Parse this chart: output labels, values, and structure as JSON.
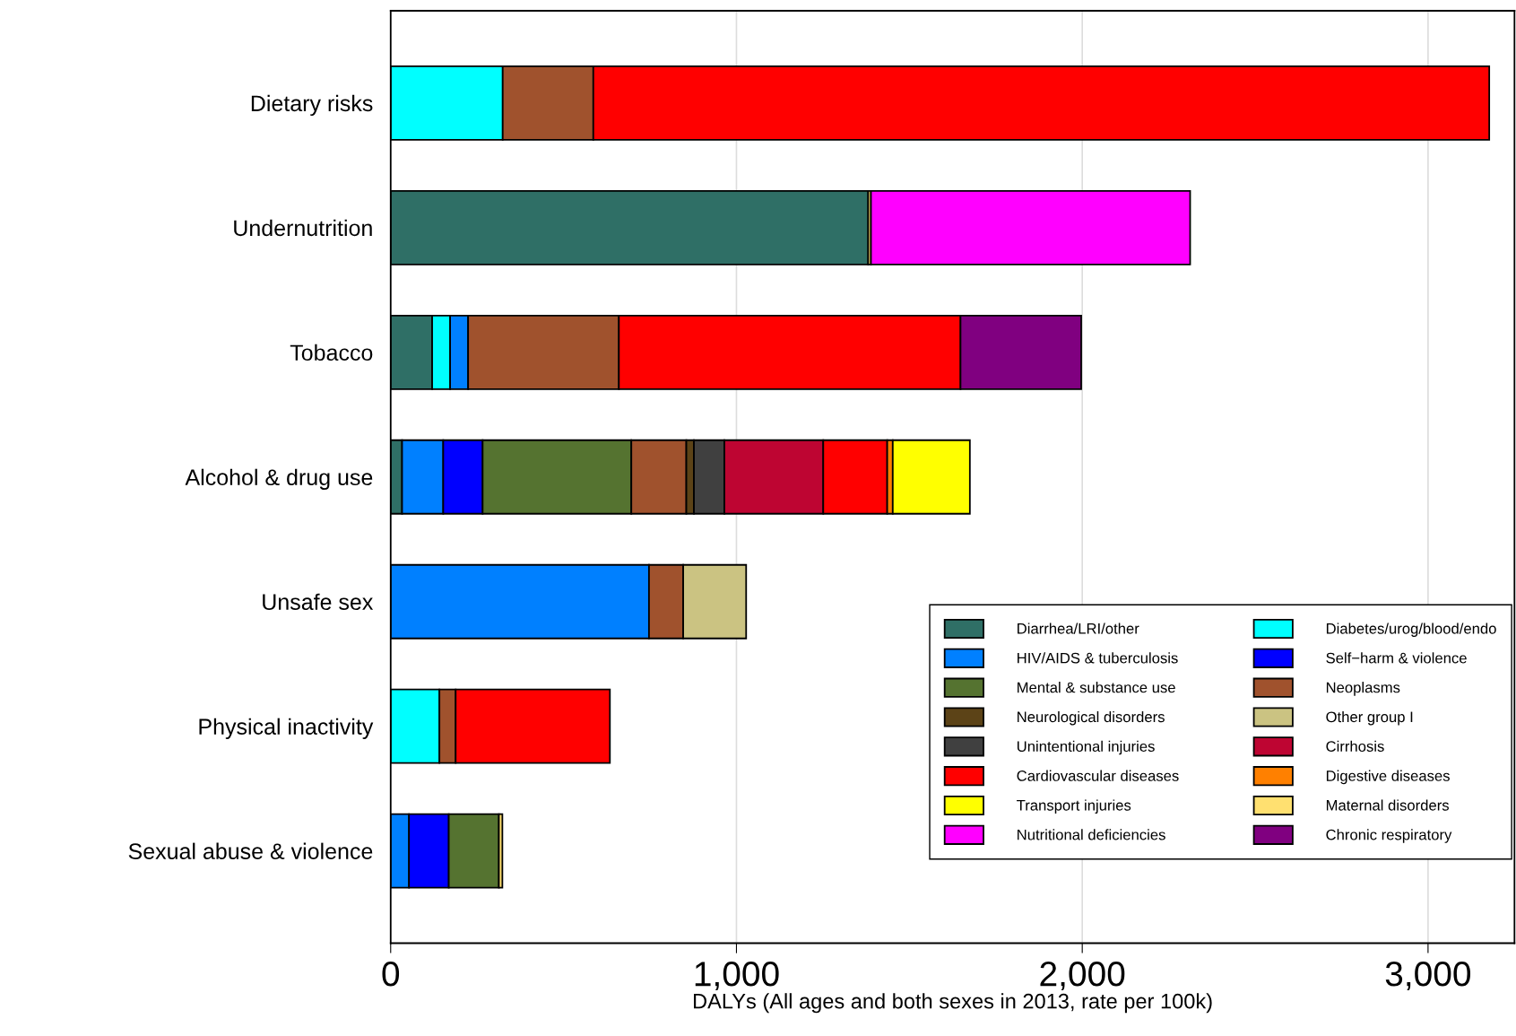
{
  "chart_data": {
    "type": "bar",
    "orientation": "horizontal",
    "stacked": true,
    "xlabel": "DALYs (All ages and both sexes in 2013, rate per 100k)",
    "categories": [
      "Dietary risks",
      "Undernutrition",
      "Tobacco",
      "Alcohol & drug use",
      "Unsafe sex",
      "Physical inactivity",
      "Sexual abuse & violence"
    ],
    "xlim": [
      0,
      3250
    ],
    "xticks": [
      0,
      {
        "value": 1000,
        "label": "1,000"
      },
      {
        "value": 2000,
        "label": "2,000"
      },
      {
        "value": 3000,
        "label": "3,000"
      }
    ],
    "grid": "x",
    "legend": "bottom right",
    "series": [
      {
        "name": "Diarrhea/LRI/other",
        "color": "#2f6f66",
        "values": [
          null,
          1381,
          120,
          33,
          null,
          null,
          null
        ]
      },
      {
        "name": "Diabetes/urog/blood/endo",
        "color": "#00ffff",
        "values": [
          324,
          null,
          52,
          null,
          null,
          141,
          null
        ]
      },
      {
        "name": "HIV/AIDS & tuberculosis",
        "color": "#0080ff",
        "values": [
          null,
          null,
          52,
          119,
          747,
          null,
          53
        ]
      },
      {
        "name": "Self−harm & violence",
        "color": "#0000ff",
        "values": [
          null,
          null,
          null,
          114,
          null,
          null,
          115
        ]
      },
      {
        "name": "Mental & substance use",
        "color": "#557330",
        "values": [
          null,
          null,
          null,
          430,
          null,
          null,
          145
        ]
      },
      {
        "name": "Neoplasms",
        "color": "#a0522d",
        "values": [
          262,
          null,
          436,
          159,
          99,
          47,
          null
        ]
      },
      {
        "name": "Neurological disorders",
        "color": "#5c4317",
        "values": [
          null,
          null,
          null,
          22,
          null,
          null,
          null
        ]
      },
      {
        "name": "Other group I",
        "color": "#cbc382",
        "values": [
          null,
          null,
          null,
          null,
          182,
          null,
          null
        ]
      },
      {
        "name": "Unintentional injuries",
        "color": "#404040",
        "values": [
          null,
          null,
          null,
          88,
          null,
          null,
          null
        ]
      },
      {
        "name": "Cirrhosis",
        "color": "#be0532",
        "values": [
          null,
          null,
          null,
          286,
          null,
          null,
          null
        ]
      },
      {
        "name": "Cardiovascular diseases",
        "color": "#ff0000",
        "values": [
          2591,
          null,
          988,
          185,
          null,
          446,
          null
        ]
      },
      {
        "name": "Digestive diseases",
        "color": "#ff8000",
        "values": [
          null,
          null,
          null,
          16,
          null,
          null,
          null
        ]
      },
      {
        "name": "Transport injuries",
        "color": "#ffff00",
        "values": [
          null,
          null,
          null,
          223,
          null,
          null,
          null
        ]
      },
      {
        "name": "Maternal disorders",
        "color": "#ffe070",
        "values": [
          null,
          8,
          null,
          null,
          null,
          null,
          10
        ]
      },
      {
        "name": "Nutritional deficiencies",
        "color": "#ff00ff",
        "values": [
          null,
          923,
          null,
          null,
          null,
          null,
          null
        ]
      },
      {
        "name": "Chronic respiratory",
        "color": "#800080",
        "values": [
          null,
          null,
          349,
          null,
          null,
          null,
          null
        ]
      }
    ]
  }
}
